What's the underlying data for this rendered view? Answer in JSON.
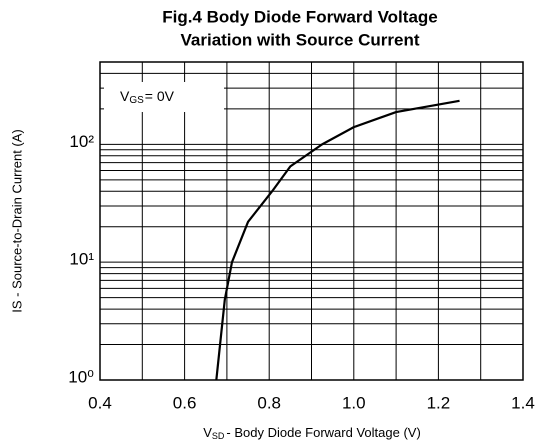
{
  "chart_data": {
    "type": "line",
    "title": [
      "Fig.4 Body Diode Forward Voltage",
      "Variation with Source Current"
    ],
    "ylabel": "IS - Source-to-Drain Current (A)",
    "xlabel": {
      "main": "V",
      "sub": "SD",
      "rest": "- Body Diode Forward Voltage (V)"
    },
    "annotation": {
      "main": "V",
      "sub": "GS",
      "rest": "= 0V"
    },
    "x": [
      0.675,
      0.695,
      0.712,
      0.75,
      0.807,
      0.85,
      0.925,
      1.0,
      1.1,
      1.25
    ],
    "series": [
      {
        "name": "IS",
        "color": "#000000",
        "values": [
          1,
          4.8,
          10,
          22,
          40,
          65,
          100,
          140,
          188,
          234
        ]
      }
    ],
    "xlim": [
      0.4,
      1.4
    ],
    "xticks": [
      0.4,
      0.6,
      0.8,
      {
        "value": 1,
        "label": "1.0"
      },
      1.2,
      1.4
    ],
    "xminor": [
      0.5,
      0.7,
      0.9,
      1.1,
      1.3
    ],
    "ylim": [
      1,
      500
    ],
    "yscale": "log",
    "yticks": [
      {
        "value": 1,
        "label": "10⁰"
      },
      {
        "value": 10,
        "label": "10¹"
      },
      {
        "value": 100,
        "label": "10²"
      }
    ],
    "yminor": [
      2,
      3,
      4,
      5,
      6,
      7,
      8,
      9,
      20,
      30,
      40,
      50,
      60,
      70,
      80,
      90,
      200,
      300,
      400,
      500
    ],
    "grid": true
  }
}
